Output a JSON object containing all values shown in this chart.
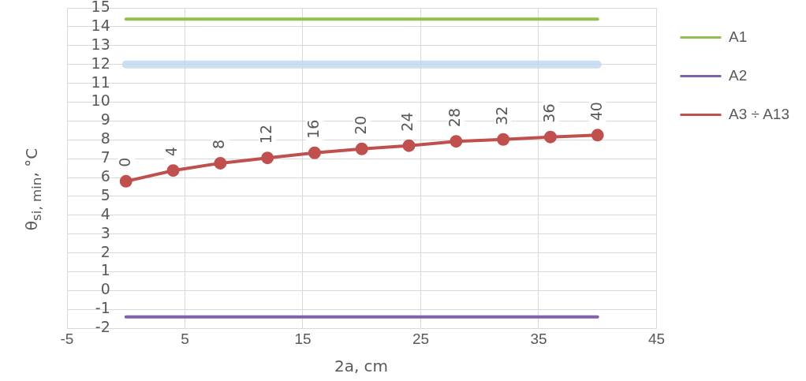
{
  "chart_data": {
    "type": "line",
    "xlabel": "2a, cm",
    "ylabel": "θ$_{si, min}$, °C",
    "xlim": [
      -5,
      45
    ],
    "xticks": [
      -5,
      5,
      15,
      25,
      35,
      45
    ],
    "ylim": [
      -2,
      15
    ],
    "yticks": [
      -2,
      -1,
      0,
      1,
      2,
      3,
      4,
      5,
      6,
      7,
      8,
      9,
      10,
      11,
      12,
      13,
      14,
      15
    ],
    "grid": true,
    "legend": "right",
    "series": [
      {
        "name": "A1",
        "color": "#92c050",
        "x": [
          0,
          40
        ],
        "values": [
          14.4,
          14.4
        ],
        "marker": "none"
      },
      {
        "color": "#bdd7ee",
        "x": [
          0,
          40
        ],
        "values": [
          12,
          12
        ],
        "marker": "none"
      },
      {
        "name": "A2",
        "color": "#7f62a8",
        "x": [
          0,
          40
        ],
        "values": [
          -1.4,
          -1.4
        ],
        "marker": "none"
      },
      {
        "name": "A3 ÷ A13",
        "color": "#c0504d",
        "x": [
          0,
          4,
          8,
          12,
          16,
          20,
          24,
          28,
          32,
          36,
          40
        ],
        "values": [
          5.8,
          6.37,
          6.76,
          7.04,
          7.31,
          7.52,
          7.69,
          7.92,
          8.02,
          8.15,
          8.25
        ],
        "marker": "circle"
      }
    ],
    "annotations": [
      {
        "text": "0",
        "x": 0,
        "y": 5.8
      },
      {
        "text": "4",
        "x": 4,
        "y": 6.37
      },
      {
        "text": "8",
        "x": 8,
        "y": 6.76
      },
      {
        "text": "12",
        "x": 12,
        "y": 7.04
      },
      {
        "text": "16",
        "x": 16,
        "y": 7.31
      },
      {
        "text": "20",
        "x": 20,
        "y": 7.52
      },
      {
        "text": "24",
        "x": 24,
        "y": 7.69
      },
      {
        "text": "28",
        "x": 28,
        "y": 7.92
      },
      {
        "text": "32",
        "x": 32,
        "y": 8.02
      },
      {
        "text": "36",
        "x": 36,
        "y": 8.15
      },
      {
        "text": "40",
        "x": 40,
        "y": 8.25
      }
    ]
  }
}
